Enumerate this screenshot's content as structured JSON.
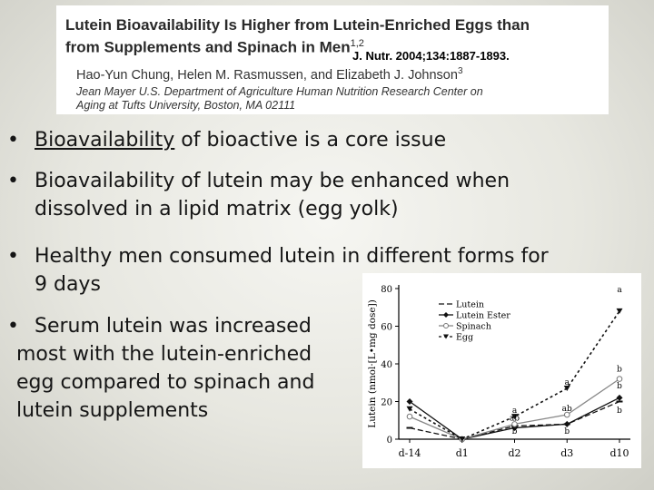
{
  "citation": {
    "title_main": "Lutein Bioavailability Is Higher from Lutein-Enriched Eggs than from Supplements and Spinach in Men",
    "title_sup": "1,2",
    "journal": "J. Nutr. 2004;134:1887-1893.",
    "authors_main": "Hao-Yun Chung, Helen M. Rasmussen, and Elizabeth J. Johnson",
    "authors_sup": "3",
    "affiliation": "Jean Mayer U.S. Department of Agriculture Human Nutrition Research Center on Aging at Tufts University, Boston, MA 02111"
  },
  "bullets": {
    "marker": "•",
    "b1_underlined": "Bioavailability",
    "b1_rest": " of bioactive is a core issue",
    "b2": "Bioavailability of lutein may be enhanced when dissolved in a lipid matrix (egg yolk)",
    "b3": "Healthy men consumed lutein in different forms for 9 days",
    "b4_line1": "Serum lutein was increased",
    "b4_line2": "most with the lutein-enriched",
    "b4_line3": "egg compared to spinach and",
    "b4_line4": "lutein supplements"
  },
  "chart_data": {
    "type": "line",
    "ylabel": "Lutein (nmol·[L•mg dose])",
    "ylim": [
      0,
      80
    ],
    "yticks": [
      "0",
      "20",
      "40",
      "60",
      "80"
    ],
    "categories": [
      "d-14",
      "d1",
      "d2",
      "d3",
      "d10"
    ],
    "series": [
      {
        "name": "Lutein",
        "marker": "dash",
        "dash": "6,3",
        "values": [
          6,
          0,
          7,
          8,
          20
        ]
      },
      {
        "name": "Lutein Ester",
        "marker": "diamond",
        "dash": "none",
        "values": [
          20,
          0,
          6,
          8,
          22
        ]
      },
      {
        "name": "Spinach",
        "marker": "circle",
        "dash": "none",
        "values": [
          12,
          0,
          8,
          13,
          32
        ]
      },
      {
        "name": "Egg",
        "marker": "triangle",
        "dash": "3,3",
        "values": [
          16,
          0,
          12,
          27,
          68
        ]
      }
    ],
    "annotations": [
      {
        "text": "a",
        "x": "d2",
        "y": 14
      },
      {
        "text": "ab",
        "x": "d2",
        "y": 10
      },
      {
        "text": "b",
        "x": "d2",
        "y": 3
      },
      {
        "text": "a",
        "x": "d3",
        "y": 29
      },
      {
        "text": "ab",
        "x": "d3",
        "y": 15
      },
      {
        "text": "b",
        "x": "d3",
        "y": 3
      },
      {
        "text": "a",
        "x": "d10",
        "y": 78
      },
      {
        "text": "b",
        "x": "d10",
        "y": 36
      },
      {
        "text": "b",
        "x": "d10",
        "y": 27
      },
      {
        "text": "b",
        "x": "d10",
        "y": 14
      }
    ]
  }
}
